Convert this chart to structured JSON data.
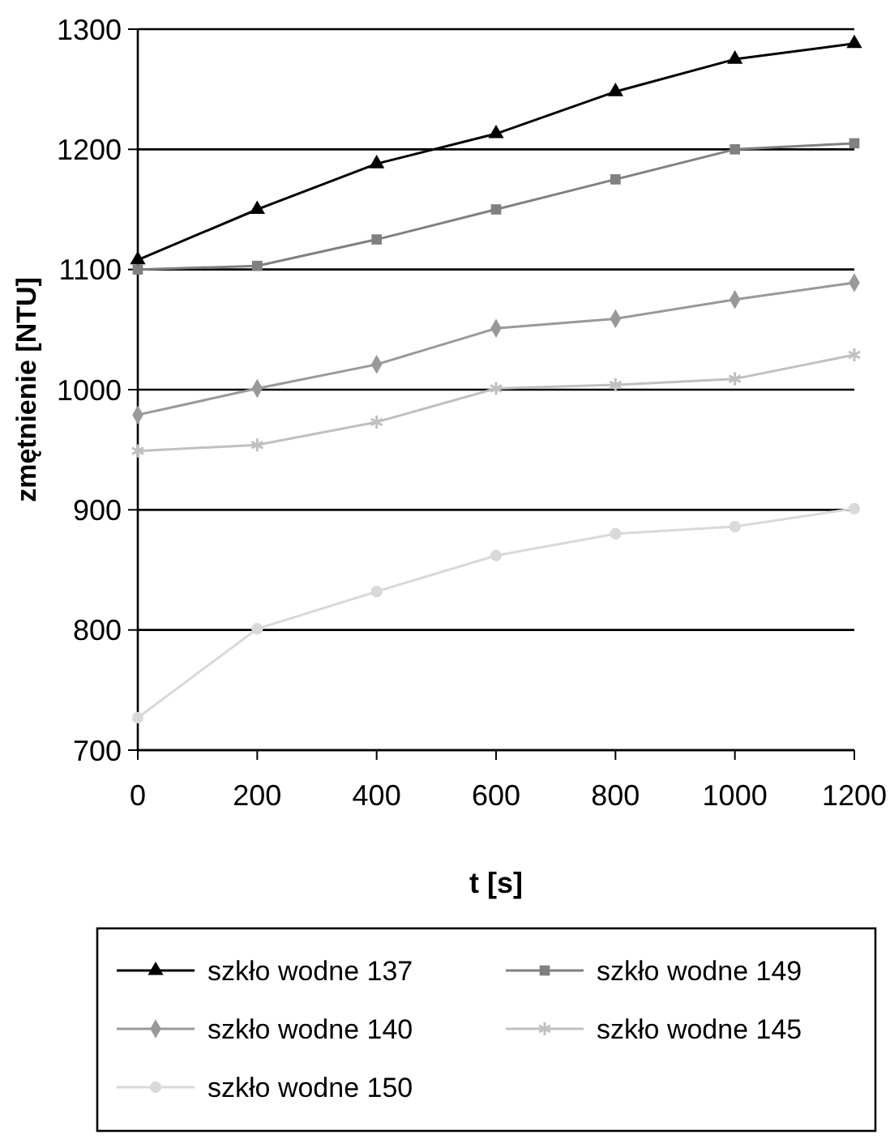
{
  "chart_data": {
    "type": "line",
    "xlabel": "t [s]",
    "ylabel": "zmętnienie [NTU]",
    "x": [
      0,
      200,
      400,
      600,
      800,
      1000,
      1200
    ],
    "xlim": [
      0,
      1200
    ],
    "xticks": [
      0,
      200,
      400,
      600,
      800,
      1000,
      1200
    ],
    "ylim": [
      700,
      1300
    ],
    "yticks": [
      700,
      800,
      900,
      1000,
      1100,
      1200,
      1300
    ],
    "grid": "y",
    "legend": "bottom",
    "line_style": "solid",
    "series": [
      {
        "name": "szkło wodne 137",
        "color": "#000000",
        "marker": "triangle",
        "values": [
          1108,
          1150,
          1188,
          1213,
          1248,
          1275,
          1288
        ]
      },
      {
        "name": "szkło wodne 149",
        "color": "#808080",
        "marker": "square",
        "values": [
          1100,
          1103,
          1125,
          1150,
          1175,
          1200,
          1205
        ]
      },
      {
        "name": "szkło wodne 140",
        "color": "#999999",
        "marker": "diamond",
        "values": [
          979,
          1001,
          1021,
          1051,
          1059,
          1075,
          1089
        ]
      },
      {
        "name": "szkło wodne 145",
        "color": "#c0c0c0",
        "marker": "cross",
        "values": [
          949,
          954,
          973,
          1001,
          1004,
          1009,
          1029
        ]
      },
      {
        "name": "szkło wodne 150",
        "color": "#d9d9d9",
        "marker": "circle",
        "values": [
          727,
          801,
          832,
          862,
          880,
          886,
          901
        ]
      }
    ]
  }
}
